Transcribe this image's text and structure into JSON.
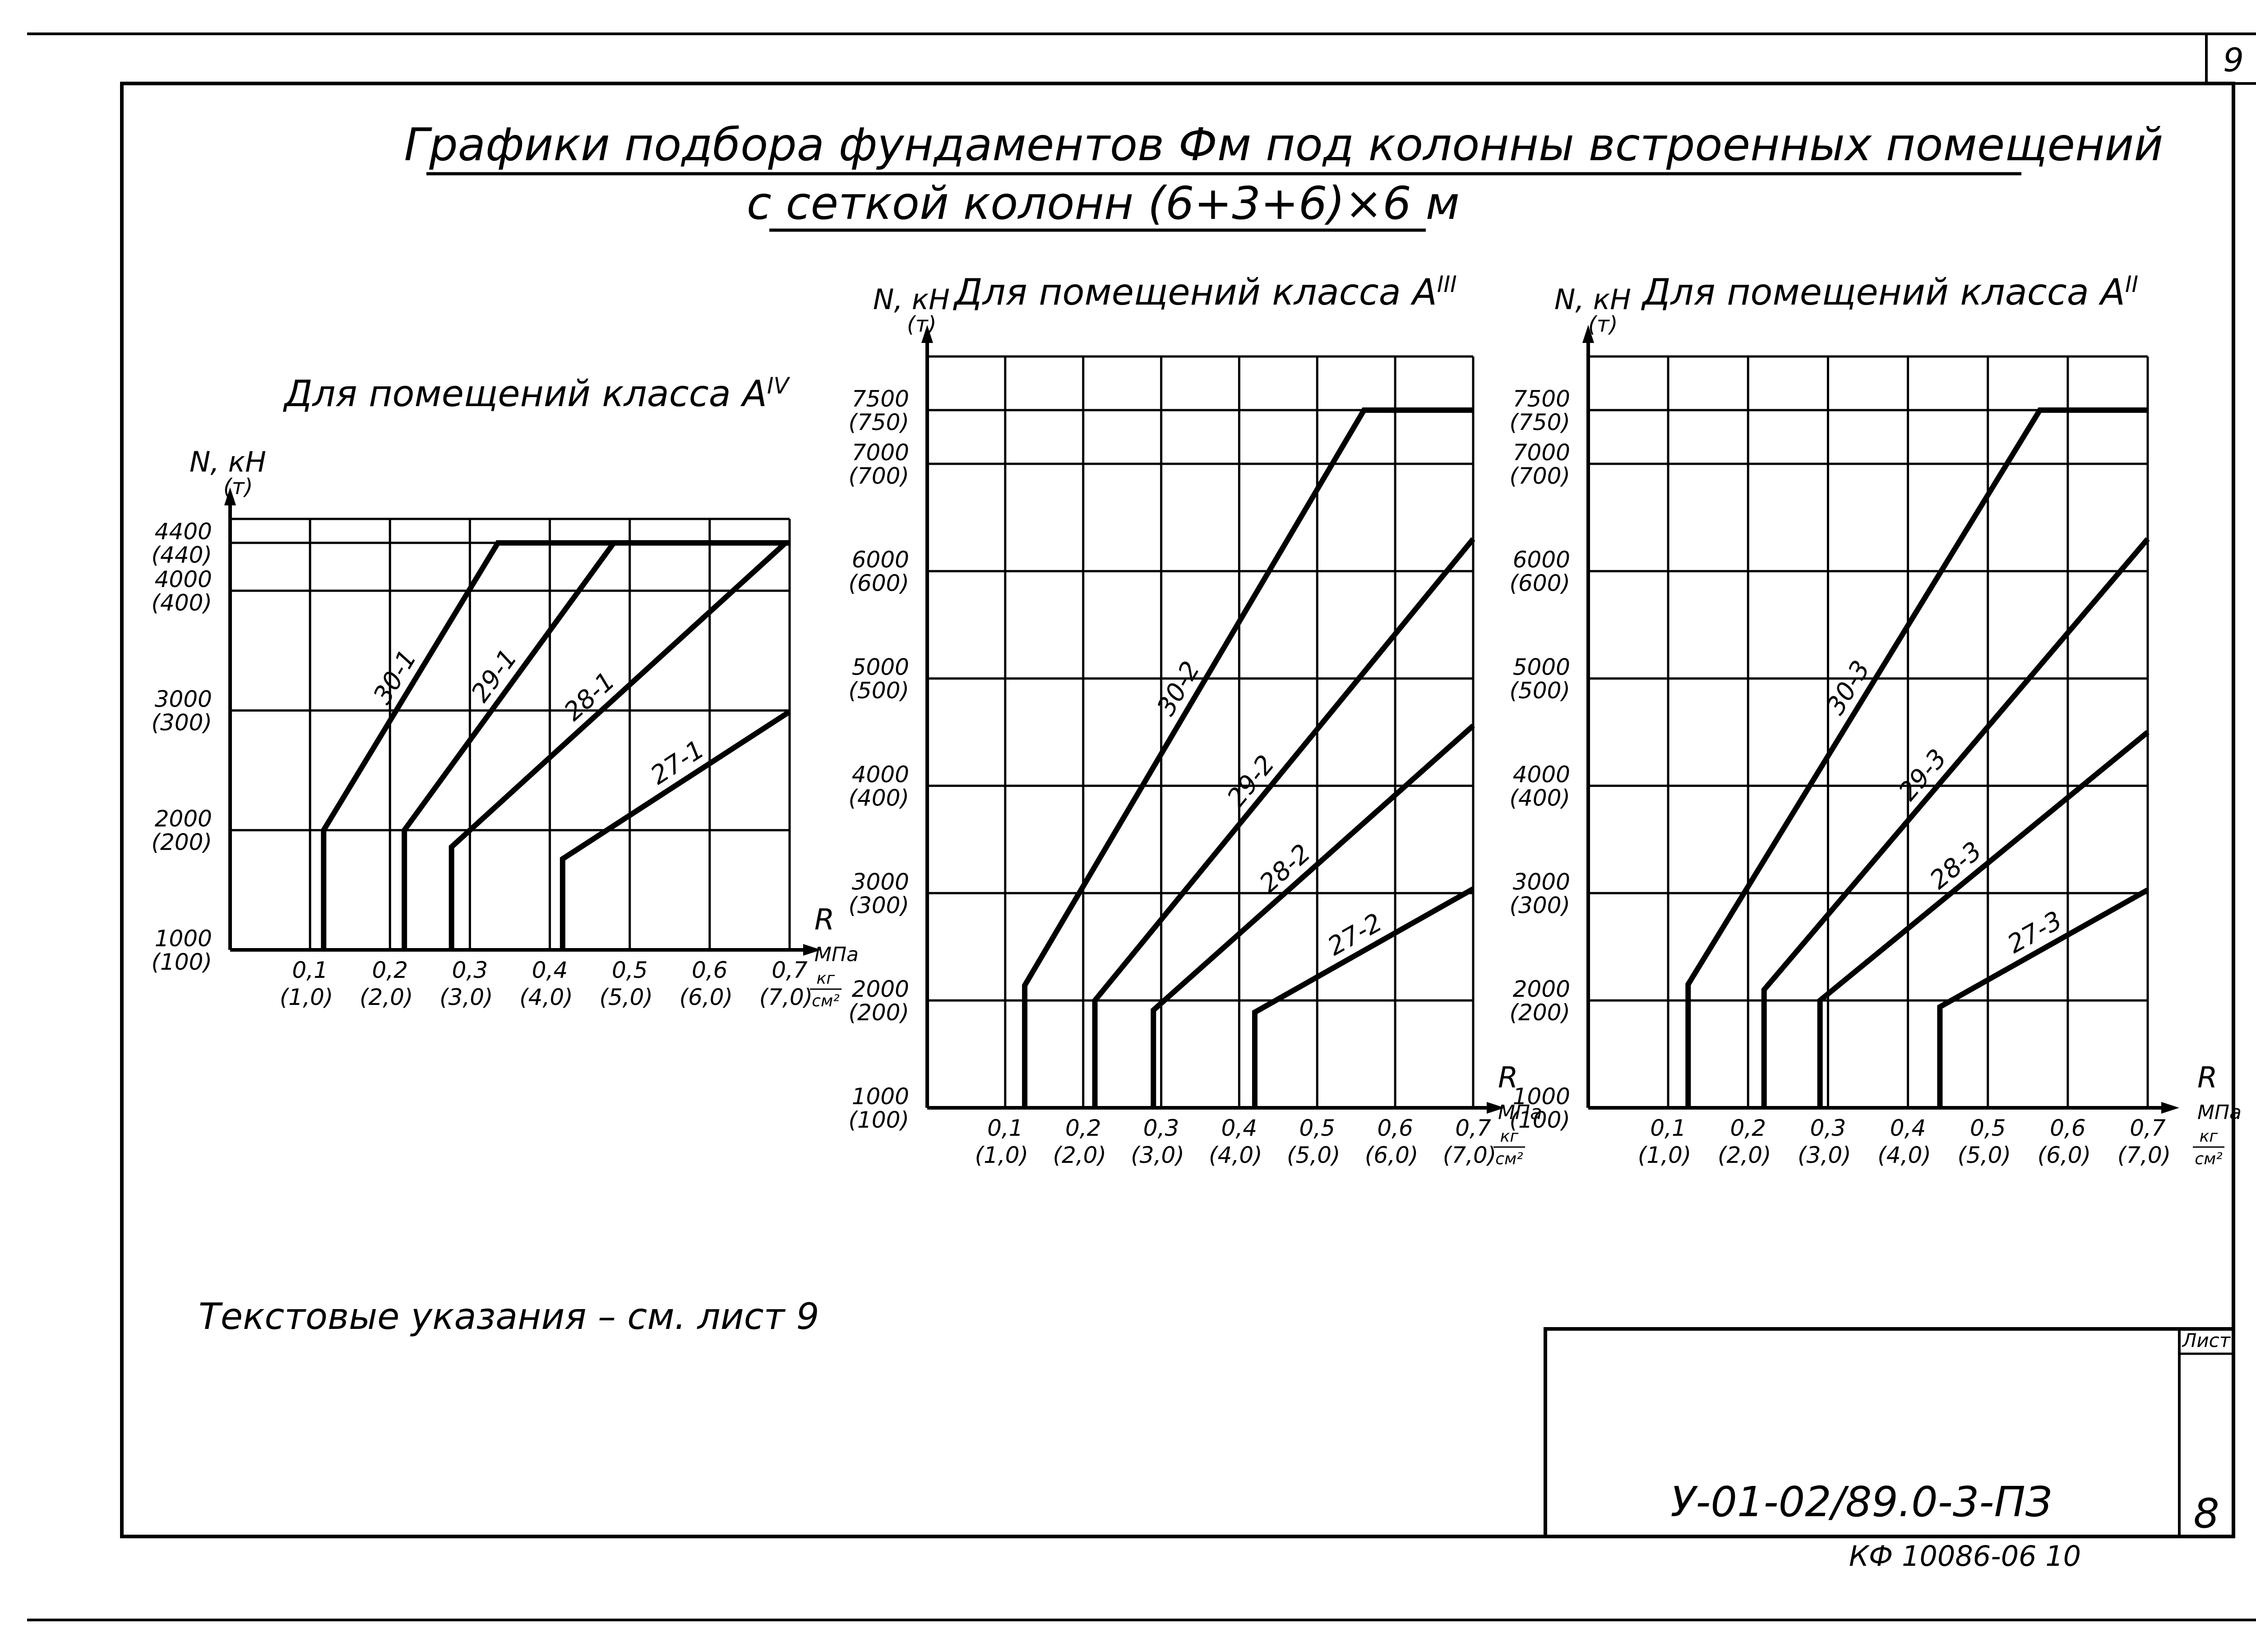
{
  "sheet": {
    "page_number": "9",
    "title_line1": "Графики подбора фундаментов Фм под колонны встроенных помещений",
    "title_line2": "с сеткой колонн (6+3+6)×6 м",
    "note": "Текстовые указания – см. лист 9",
    "doc_code": "У-01-02/89.0-3-ПЗ",
    "sheet_label": "Лист",
    "sheet_no": "8",
    "archive_code": "КФ 10086-06 10"
  },
  "axis_text": {
    "y_name": "N, кН",
    "y_unit": "(т)",
    "x_name": "R",
    "x_unit": "МПа",
    "x_unit2_num": "кг",
    "x_unit2_den": "см²"
  },
  "chart_data": [
    {
      "type": "line",
      "title": "Для помещений класса АIV",
      "title_base": "Для помещений класса А",
      "title_sup": "IV",
      "xlabel": "R, МПа (кг/см²)",
      "ylabel": "N, кН (т)",
      "xlim": [
        0.0,
        0.7
      ],
      "ylim": [
        1000,
        4600
      ],
      "grid": true,
      "x_ticks": [
        {
          "v": 0.1,
          "label": "0,1",
          "label2": "(1,0)"
        },
        {
          "v": 0.2,
          "label": "0,2",
          "label2": "(2,0)"
        },
        {
          "v": 0.3,
          "label": "0,3",
          "label2": "(3,0)"
        },
        {
          "v": 0.4,
          "label": "0,4",
          "label2": "(4,0)"
        },
        {
          "v": 0.5,
          "label": "0,5",
          "label2": "(5,0)"
        },
        {
          "v": 0.6,
          "label": "0,6",
          "label2": "(6,0)"
        },
        {
          "v": 0.7,
          "label": "0,7",
          "label2": "(7,0)"
        }
      ],
      "y_ticks": [
        {
          "v": 1000,
          "label": "1000",
          "label2": "(100)"
        },
        {
          "v": 2000,
          "label": "2000",
          "label2": "(200)"
        },
        {
          "v": 3000,
          "label": "3000",
          "label2": "(300)"
        },
        {
          "v": 4000,
          "label": "4000",
          "label2": "(400)"
        },
        {
          "v": 4400,
          "label": "4400",
          "label2": "(440)"
        }
      ],
      "series": [
        {
          "name": "30-1",
          "x": [
            0.117,
            0.117,
            0.335,
            0.7
          ],
          "y": [
            1000,
            2000,
            4400,
            4400
          ]
        },
        {
          "name": "29-1",
          "x": [
            0.218,
            0.218,
            0.48,
            0.7
          ],
          "y": [
            1000,
            2000,
            4400,
            4400
          ]
        },
        {
          "name": "28-1",
          "x": [
            0.277,
            0.277,
            0.695,
            0.7
          ],
          "y": [
            1000,
            1860,
            4400,
            4400
          ]
        },
        {
          "name": "27-1",
          "x": [
            0.416,
            0.416,
            0.7
          ],
          "y": [
            1000,
            1760,
            2990
          ]
        }
      ]
    },
    {
      "type": "line",
      "title": "Для помещений класса АIII",
      "title_base": "Для помещений класса А",
      "title_sup": "III",
      "xlabel": "R, МПа (кг/см²)",
      "ylabel": "N, кН (т)",
      "xlim": [
        0.0,
        0.7
      ],
      "ylim": [
        1000,
        8000
      ],
      "grid": true,
      "x_ticks": [
        {
          "v": 0.1,
          "label": "0,1",
          "label2": "(1,0)"
        },
        {
          "v": 0.2,
          "label": "0,2",
          "label2": "(2,0)"
        },
        {
          "v": 0.3,
          "label": "0,3",
          "label2": "(3,0)"
        },
        {
          "v": 0.4,
          "label": "0,4",
          "label2": "(4,0)"
        },
        {
          "v": 0.5,
          "label": "0,5",
          "label2": "(5,0)"
        },
        {
          "v": 0.6,
          "label": "0,6",
          "label2": "(6,0)"
        },
        {
          "v": 0.7,
          "label": "0,7",
          "label2": "(7,0)"
        }
      ],
      "y_ticks": [
        {
          "v": 1000,
          "label": "1000",
          "label2": "(100)"
        },
        {
          "v": 2000,
          "label": "2000",
          "label2": "(200)"
        },
        {
          "v": 3000,
          "label": "3000",
          "label2": "(300)"
        },
        {
          "v": 4000,
          "label": "4000",
          "label2": "(400)"
        },
        {
          "v": 5000,
          "label": "5000",
          "label2": "(500)"
        },
        {
          "v": 6000,
          "label": "6000",
          "label2": "(600)"
        },
        {
          "v": 7000,
          "label": "7000",
          "label2": "(700)"
        },
        {
          "v": 7500,
          "label": "7500",
          "label2": "(750)"
        }
      ],
      "series": [
        {
          "name": "30-2",
          "x": [
            0.125,
            0.125,
            0.56,
            0.7
          ],
          "y": [
            1000,
            2140,
            7500,
            7500
          ]
        },
        {
          "name": "29-2",
          "x": [
            0.215,
            0.215,
            0.7
          ],
          "y": [
            1000,
            2000,
            6300
          ]
        },
        {
          "name": "28-2",
          "x": [
            0.29,
            0.29,
            0.7
          ],
          "y": [
            1000,
            1910,
            4560
          ]
        },
        {
          "name": "27-2",
          "x": [
            0.42,
            0.42,
            0.7
          ],
          "y": [
            1000,
            1890,
            3040
          ]
        }
      ]
    },
    {
      "type": "line",
      "title": "Для помещений класса АII",
      "title_base": "Для помещений класса А",
      "title_sup": "II",
      "xlabel": "R, МПа (кг/см²)",
      "ylabel": "N, кН (т)",
      "xlim": [
        0.0,
        0.7
      ],
      "ylim": [
        1000,
        8000
      ],
      "grid": true,
      "x_ticks": [
        {
          "v": 0.1,
          "label": "0,1",
          "label2": "(1,0)"
        },
        {
          "v": 0.2,
          "label": "0,2",
          "label2": "(2,0)"
        },
        {
          "v": 0.3,
          "label": "0,3",
          "label2": "(3,0)"
        },
        {
          "v": 0.4,
          "label": "0,4",
          "label2": "(4,0)"
        },
        {
          "v": 0.5,
          "label": "0,5",
          "label2": "(5,0)"
        },
        {
          "v": 0.6,
          "label": "0,6",
          "label2": "(6,0)"
        },
        {
          "v": 0.7,
          "label": "0,7",
          "label2": "(7,0)"
        }
      ],
      "y_ticks": [
        {
          "v": 1000,
          "label": "1000",
          "label2": "(100)"
        },
        {
          "v": 2000,
          "label": "2000",
          "label2": "(200)"
        },
        {
          "v": 3000,
          "label": "3000",
          "label2": "(300)"
        },
        {
          "v": 4000,
          "label": "4000",
          "label2": "(400)"
        },
        {
          "v": 5000,
          "label": "5000",
          "label2": "(500)"
        },
        {
          "v": 6000,
          "label": "6000",
          "label2": "(600)"
        },
        {
          "v": 7000,
          "label": "7000",
          "label2": "(700)"
        },
        {
          "v": 7500,
          "label": "7500",
          "label2": "(750)"
        }
      ],
      "series": [
        {
          "name": "30-3",
          "x": [
            0.125,
            0.125,
            0.565,
            0.7
          ],
          "y": [
            1000,
            2150,
            7500,
            7500
          ]
        },
        {
          "name": "29-3",
          "x": [
            0.22,
            0.22,
            0.7
          ],
          "y": [
            1000,
            2100,
            6300
          ]
        },
        {
          "name": "28-3",
          "x": [
            0.29,
            0.29,
            0.7
          ],
          "y": [
            1000,
            2000,
            4500
          ]
        },
        {
          "name": "27-3",
          "x": [
            0.44,
            0.44,
            0.7
          ],
          "y": [
            1000,
            1940,
            3030
          ]
        }
      ]
    }
  ]
}
